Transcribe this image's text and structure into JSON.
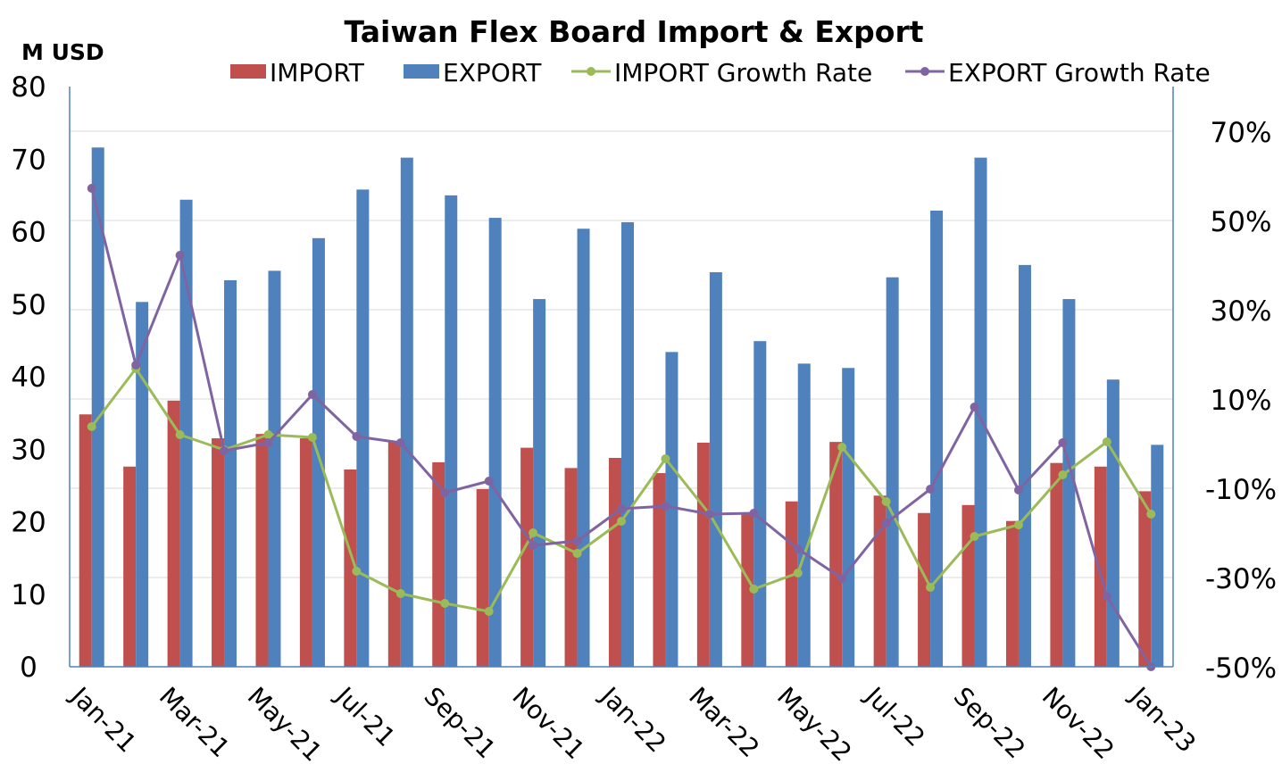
{
  "chart_data": {
    "type": "bar",
    "title": "Taiwan Flex Board Import & Export",
    "ylabel": "M USD",
    "ylim": [
      0,
      80
    ],
    "y_ticks": [
      0,
      10,
      20,
      30,
      40,
      50,
      60,
      70,
      80
    ],
    "y2lim": [
      -50,
      80
    ],
    "y2_ticks": [
      "-50%",
      "-30%",
      "-10%",
      "10%",
      "30%",
      "50%",
      "70%"
    ],
    "y2_tick_values": [
      -50,
      -30,
      -10,
      10,
      30,
      50,
      70
    ],
    "legend_position": "top",
    "grid": true,
    "categories": [
      "Jan-21",
      "Feb-21",
      "Mar-21",
      "Apr-21",
      "May-21",
      "Jun-21",
      "Jul-21",
      "Aug-21",
      "Sep-21",
      "Oct-21",
      "Nov-21",
      "Dec-21",
      "Jan-22",
      "Feb-22",
      "Mar-22",
      "Apr-22",
      "May-22",
      "Jun-22",
      "Jul-22",
      "Aug-22",
      "Sep-22",
      "Oct-22",
      "Nov-22",
      "Dec-22",
      "Jan-23"
    ],
    "x_tick_labels": [
      "Jan-21",
      "Mar-21",
      "May-21",
      "Jul-21",
      "Sep-21",
      "Nov-21",
      "Jan-22",
      "Mar-22",
      "May-22",
      "Jul-22",
      "Sep-22",
      "Nov-22",
      "Jan-23"
    ],
    "series": [
      {
        "name": "IMPORT",
        "type": "bar",
        "axis": "left",
        "color": "#c0504d",
        "values": [
          34.8,
          27.6,
          36.7,
          31.5,
          32.1,
          31.5,
          27.2,
          31.0,
          28.2,
          24.5,
          30.2,
          27.4,
          28.8,
          26.7,
          30.9,
          21.0,
          22.8,
          31.0,
          23.6,
          21.2,
          22.3,
          20.1,
          28.1,
          27.6,
          24.2
        ]
      },
      {
        "name": "EXPORT",
        "type": "bar",
        "axis": "left",
        "color": "#4f81bd",
        "values": [
          71.6,
          50.3,
          64.4,
          53.3,
          54.6,
          59.1,
          65.8,
          70.2,
          65.0,
          61.9,
          50.7,
          60.4,
          61.3,
          43.4,
          54.4,
          44.9,
          41.8,
          41.2,
          53.7,
          62.9,
          70.2,
          55.4,
          50.7,
          39.6,
          30.6
        ]
      },
      {
        "name": "IMPORT Growth Rate",
        "type": "line",
        "axis": "right",
        "color": "#9bbb59",
        "values": [
          3.8,
          16.8,
          2.0,
          -1.4,
          2.0,
          1.4,
          -28.6,
          -33.6,
          -35.8,
          -37.6,
          -20.0,
          -24.6,
          -17.4,
          -3.4,
          -15.8,
          -32.6,
          -29.0,
          -0.8,
          -13.0,
          -32.2,
          -20.8,
          -18.2,
          -7.0,
          0.4,
          -15.8
        ]
      },
      {
        "name": "EXPORT Growth Rate",
        "type": "line",
        "axis": "right",
        "color": "#8064a2",
        "values": [
          57.2,
          17.6,
          42.2,
          -1.6,
          0.2,
          11.0,
          1.6,
          0.2,
          -11.0,
          -8.4,
          -22.8,
          -21.8,
          -14.6,
          -14.0,
          -15.8,
          -15.6,
          -23.6,
          -30.2,
          -17.8,
          -10.2,
          8.2,
          -10.4,
          0.2,
          -34.2,
          -50.0
        ]
      }
    ]
  }
}
